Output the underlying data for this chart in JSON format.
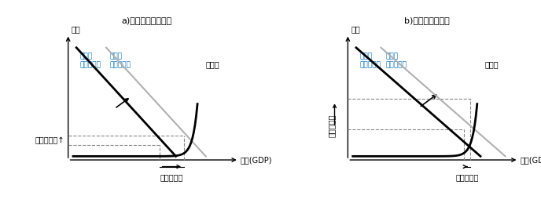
{
  "title_a": "a)不完全雇用の場合",
  "title_b": "b)完全雇用の場合",
  "ylabel": "物価",
  "xlabel": "生産(GDP)",
  "expand_label": "生産の拡大",
  "price_rise_label_a": "物価の上昇↑",
  "price_rise_label_b": "物価の上昇",
  "ad_before_label": "総需要\n（実施前）",
  "ad_after_label": "総需要\n（実施後）",
  "as_label": "総供給",
  "background": "#ffffff",
  "line_color_black": "#000000",
  "line_color_gray": "#b0b0b0",
  "dashed_color": "#888888",
  "text_color_blue": "#0070c0",
  "text_color_black": "#000000"
}
